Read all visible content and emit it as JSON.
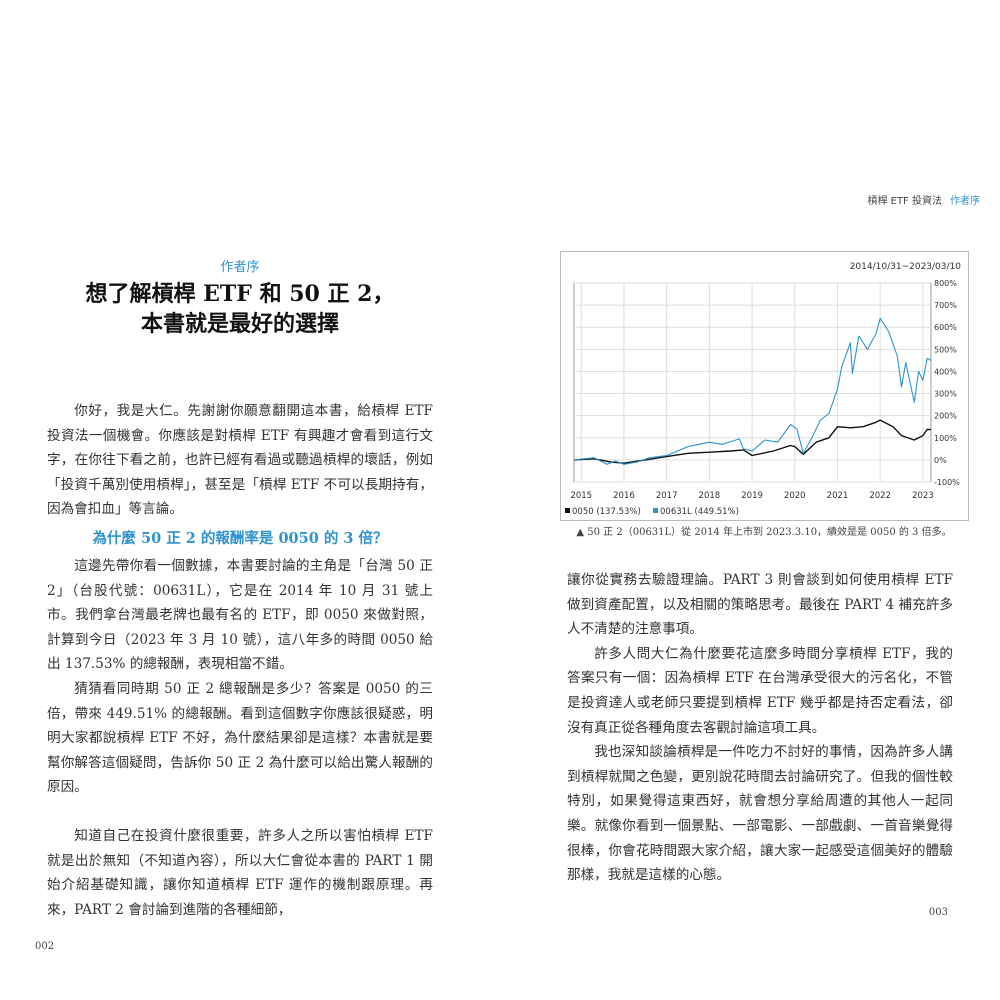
{
  "left_page": {
    "kicker": "作者序",
    "title_lines": [
      "想了解槓桿 ETF 和 50 正 2，",
      "本書就是最好的選擇"
    ],
    "paragraph_1": "你好，我是大仁。先謝謝你願意翻開這本書，給槓桿 ETF 投資法一個機會。你應該是對槓桿 ETF 有興趣才會看到這行文字，在你往下看之前，也許已經有看過或聽過槓桿的壞話，例如「投資千萬別使用槓桿」，甚至是「槓桿 ETF 不可以長期持有，因為會扣血」等言論。",
    "subheading": "為什麼 50 正 2 的報酬率是 0050 的 3 倍？",
    "paragraph_2": "這邊先帶你看一個數據，本書要討論的主角是「台灣 50 正 2」（台股代號：00631L），它是在 2014 年 10 月 31 號上市。我們拿台灣最老牌也最有名的 ETF，即 0050 來做對照，計算到今日（2023 年 3 月 10 號），這八年多的時間 0050 給出 137.53% 的總報酬，表現相當不錯。",
    "paragraph_3": "猜猜看同時期 50 正 2 總報酬是多少？答案是 0050 的三倍，帶來 449.51% 的總報酬。看到這個數字你應該很疑惑，明明大家都說槓桿 ETF 不好，為什麼結果卻是這樣？本書就是要幫你解答這個疑問，告訴你 50 正 2 為什麼可以給出驚人報酬的原因。",
    "paragraph_4": "知道自己在投資什麼很重要，許多人之所以害怕槓桿 ETF 就是出於無知（不知道內容），所以大仁會從本書的 PART 1 開始介紹基礎知識，讓你知道槓桿 ETF 運作的機制跟原理。再來，PART 2 會討論到進階的各種細節，",
    "page_number": "002"
  },
  "right_page": {
    "running_head": {
      "book": "槓桿 ETF 投資法",
      "section": "作者序"
    },
    "caption": "▲ 50 正 2（00631L）從 2014 年上市到 2023.3.10，績效是是 0050 的 3 倍多。",
    "paragraph_1": "讓你從實務去驗證理論。PART 3 則會談到如何使用槓桿 ETF 做到資產配置，以及相關的策略思考。最後在 PART 4 補充許多人不清楚的注意事項。",
    "paragraph_2": "許多人問大仁為什麼要花這麼多時間分享槓桿 ETF，我的答案只有一個：因為槓桿 ETF 在台灣承受很大的污名化，不管是投資達人或老師只要提到槓桿 ETF 幾乎都是持否定看法，卻沒有真正從各種角度去客觀討論這項工具。",
    "paragraph_3": "我也深知談論槓桿是一件吃力不討好的事情，因為許多人講到槓桿就聞之色變，更別說花時間去討論研究了。但我的個性較特別，如果覺得這東西好，就會想分享給周遭的其他人一起同樂。就像你看到一個景點、一部電影、一部戲劇、一首音樂覺得很棒，你會花時間跟大家介紹，讓大家一起感受這個美好的體驗那樣，我就是這樣的心態。",
    "page_number": "003"
  },
  "accent_color": "#2f93cf",
  "chart_data": {
    "type": "line",
    "date_range_label": "2014/10/31~2023/03/10",
    "x_ticks": [
      "2015",
      "2016",
      "2017",
      "2018",
      "2019",
      "2020",
      "2021",
      "2022",
      "2023"
    ],
    "y_ticks": [
      "800%",
      "700%",
      "600%",
      "500%",
      "400%",
      "300%",
      "200%",
      "100%",
      "0%",
      "-100%"
    ],
    "ylim": [
      -100,
      800
    ],
    "xlim": [
      2014.83,
      2023.19
    ],
    "grid": true,
    "legend_position": "bottom-left",
    "series": [
      {
        "name": "0050 (137.53%)",
        "color": "#111111",
        "x": [
          2014.83,
          2015.3,
          2015.7,
          2016.0,
          2016.5,
          2017.0,
          2017.5,
          2018.0,
          2018.5,
          2018.8,
          2019.0,
          2019.5,
          2019.9,
          2020.0,
          2020.2,
          2020.5,
          2020.8,
          2021.0,
          2021.3,
          2021.6,
          2021.9,
          2022.0,
          2022.3,
          2022.5,
          2022.8,
          2023.0,
          2023.1,
          2023.19
        ],
        "y": [
          0,
          5,
          -10,
          -15,
          0,
          15,
          30,
          35,
          40,
          45,
          20,
          40,
          65,
          60,
          25,
          80,
          100,
          150,
          145,
          150,
          170,
          180,
          150,
          110,
          90,
          110,
          138,
          137.53
        ]
      },
      {
        "name": "00631L (449.51%)",
        "color": "#2f93cf",
        "x": [
          2014.83,
          2015.3,
          2015.6,
          2015.8,
          2016.0,
          2016.3,
          2016.6,
          2017.0,
          2017.5,
          2018.0,
          2018.3,
          2018.7,
          2018.8,
          2019.0,
          2019.3,
          2019.6,
          2019.9,
          2020.05,
          2020.2,
          2020.4,
          2020.6,
          2020.8,
          2021.0,
          2021.1,
          2021.3,
          2021.35,
          2021.5,
          2021.7,
          2021.9,
          2022.0,
          2022.2,
          2022.4,
          2022.5,
          2022.6,
          2022.8,
          2022.9,
          2023.0,
          2023.1,
          2023.19
        ],
        "y": [
          0,
          10,
          -20,
          -5,
          -20,
          -10,
          10,
          20,
          60,
          80,
          70,
          95,
          50,
          40,
          90,
          80,
          160,
          140,
          30,
          100,
          180,
          210,
          320,
          420,
          530,
          390,
          560,
          500,
          570,
          640,
          580,
          470,
          330,
          440,
          260,
          400,
          360,
          460,
          449.51
        ]
      }
    ]
  }
}
